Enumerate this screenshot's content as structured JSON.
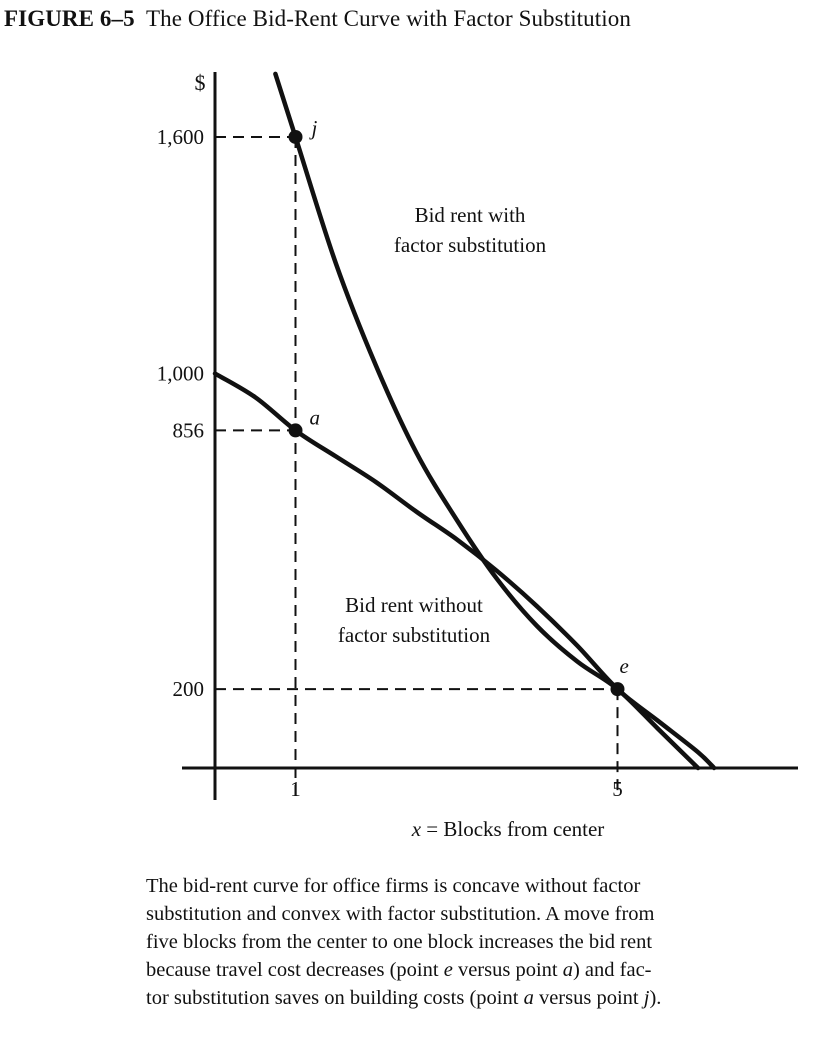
{
  "figure": {
    "label": "FIGURE 6–5",
    "title": "The Office Bid-Rent Curve with Factor Substitution",
    "caption": [
      "The bid-rent curve for office firms is concave without factor",
      "substitution and convex with factor substitution. A move from",
      "five blocks from the center to one block increases the bid rent",
      "because travel cost decreases (point e versus point a) and fac-",
      "tor substitution saves on building costs (point a versus point j)."
    ]
  },
  "chart_data": {
    "type": "line",
    "ylabel": "$",
    "xlabel": "x = Blocks from center",
    "x_ticks": [
      {
        "value": 1,
        "label": "1"
      },
      {
        "value": 5,
        "label": "5"
      }
    ],
    "y_ticks": [
      {
        "value": 200,
        "label": "200"
      },
      {
        "value": 856,
        "label": "856"
      },
      {
        "value": 1000,
        "label": "1,000"
      },
      {
        "value": 1600,
        "label": "1,600"
      }
    ],
    "xlim": [
      0,
      7.2
    ],
    "ylim": [
      0,
      1800
    ],
    "grid": false,
    "legend": "none",
    "series": [
      {
        "name": "Bid rent with factor substitution",
        "label_lines": [
          "Bid rent with",
          "factor substitution"
        ],
        "curvature": "convex",
        "x": [
          0.75,
          1,
          1.5,
          2,
          2.5,
          3,
          3.5,
          4,
          4.5,
          5,
          5.5,
          6.0
        ],
        "y": [
          1760,
          1600,
          1280,
          1020,
          800,
          630,
          480,
          360,
          270,
          200,
          100,
          0
        ]
      },
      {
        "name": "Bid rent without factor substitution",
        "label_lines": [
          "Bid rent without",
          "factor substitution"
        ],
        "curvature": "concave",
        "x": [
          0,
          0.5,
          1,
          1.5,
          2,
          2.5,
          3,
          3.5,
          4,
          4.5,
          5,
          5.5,
          6.0,
          6.2
        ],
        "y": [
          1000,
          940,
          856,
          790,
          725,
          650,
          580,
          500,
          410,
          310,
          200,
          120,
          40,
          0
        ]
      }
    ],
    "points": [
      {
        "label": "j",
        "x": 1,
        "y": 1600
      },
      {
        "label": "a",
        "x": 1,
        "y": 856
      },
      {
        "label": "e",
        "x": 5,
        "y": 200
      }
    ]
  }
}
